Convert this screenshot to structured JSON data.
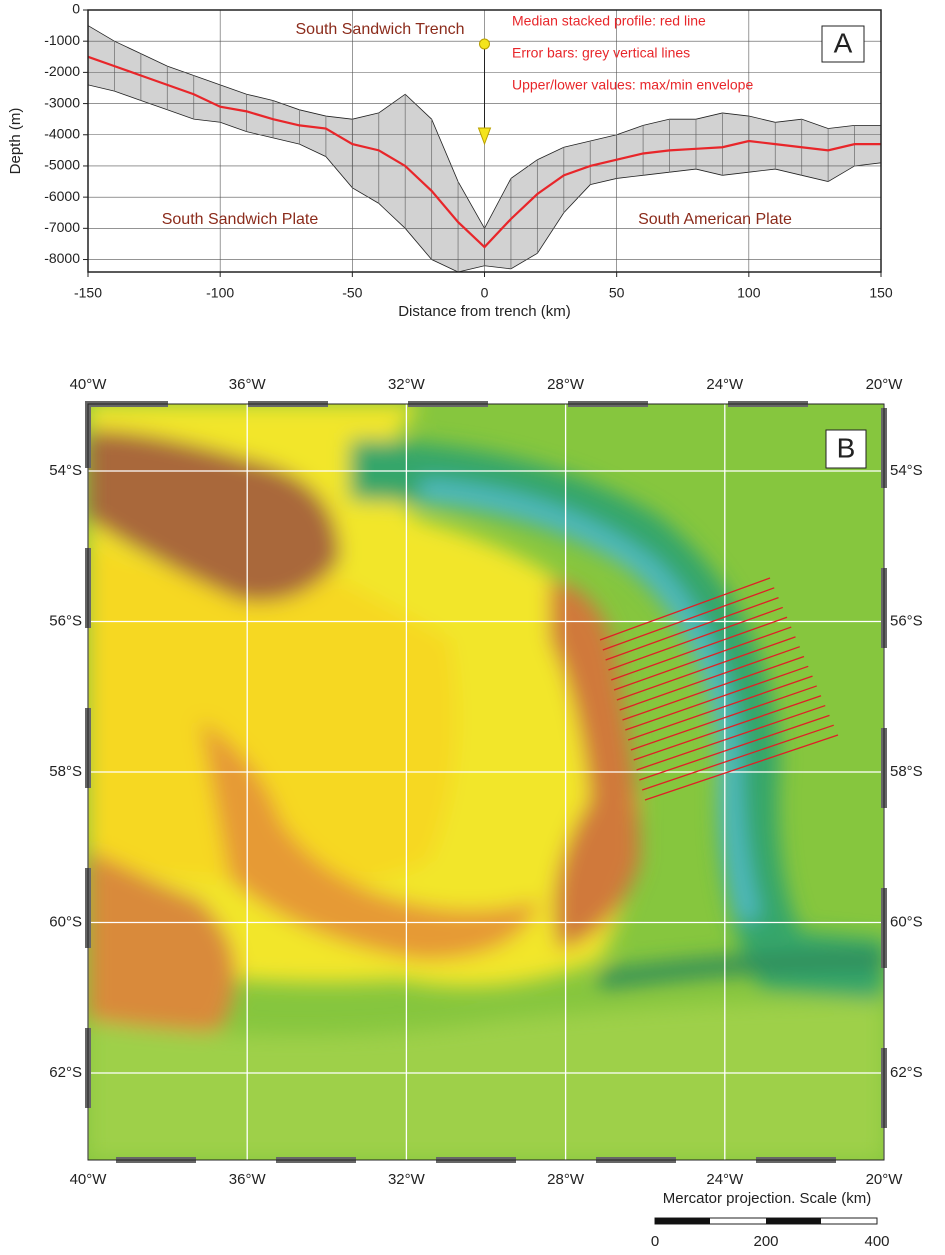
{
  "chart_data": {
    "type": "line",
    "annotation_trench": "South Sandwich Trench",
    "annotation_left": "South Sandwich Plate",
    "annotation_right": "South American Plate",
    "panel_label": "A",
    "xlabel": "Distance from trench (km)",
    "ylabel": "Depth (m)",
    "error_bars_label": "Error bars: grey vertical lines",
    "x": [
      -150,
      -140,
      -130,
      -120,
      -110,
      -100,
      -90,
      -80,
      -70,
      -60,
      -50,
      -40,
      -30,
      -20,
      -10,
      0,
      10,
      20,
      30,
      40,
      50,
      60,
      70,
      80,
      90,
      100,
      110,
      120,
      130,
      140,
      150
    ],
    "series": [
      {
        "name": "Median stacked profile: red line",
        "color": "#e8262a",
        "values": [
          -1500,
          -1800,
          -2100,
          -2400,
          -2700,
          -3100,
          -3250,
          -3500,
          -3700,
          -3800,
          -4300,
          -4500,
          -5000,
          -5800,
          -6800,
          -7600,
          -6700,
          -5900,
          -5300,
          -5000,
          -4800,
          -4600,
          -4500,
          -4450,
          -4400,
          -4200,
          -4300,
          -4400,
          -4500,
          -4300,
          -4300
        ]
      }
    ],
    "envelope": {
      "name": "Upper/lower values: max/min envelope",
      "color": "#d2d2d2",
      "upper": [
        -500,
        -1000,
        -1400,
        -1800,
        -2100,
        -2400,
        -2700,
        -2900,
        -3200,
        -3400,
        -3500,
        -3300,
        -2700,
        -3500,
        -5500,
        -7000,
        -5400,
        -4800,
        -4400,
        -4200,
        -4000,
        -3700,
        -3500,
        -3500,
        -3300,
        -3400,
        -3600,
        -3500,
        -3800,
        -3700,
        -3700
      ],
      "lower": [
        -2400,
        -2600,
        -2900,
        -3200,
        -3500,
        -3600,
        -3900,
        -4100,
        -4300,
        -4700,
        -5700,
        -6200,
        -7000,
        -8000,
        -8400,
        -8200,
        -8300,
        -7800,
        -6500,
        -5600,
        -5400,
        -5300,
        -5200,
        -5100,
        -5300,
        -5200,
        -5100,
        -5300,
        -5500,
        -5000,
        -4900
      ]
    },
    "xlim": [
      -150,
      150
    ],
    "xticks": [
      -150,
      -100,
      -50,
      0,
      50,
      100,
      150
    ],
    "ylim": [
      -8400,
      0
    ],
    "yticks": [
      0,
      -1000,
      -2000,
      -3000,
      -4000,
      -5000,
      -6000,
      -7000,
      -8000
    ],
    "grid": true
  },
  "map": {
    "panel_label": "B",
    "lon_labels": [
      "40°W",
      "36°W",
      "32°W",
      "28°W",
      "24°W",
      "20°W"
    ],
    "lat_labels": [
      "54°S",
      "56°S",
      "58°S",
      "60°S",
      "62°S"
    ],
    "scale_title": "Mercator projection. Scale (km)",
    "scale_ticks": [
      0,
      200,
      400
    ]
  }
}
